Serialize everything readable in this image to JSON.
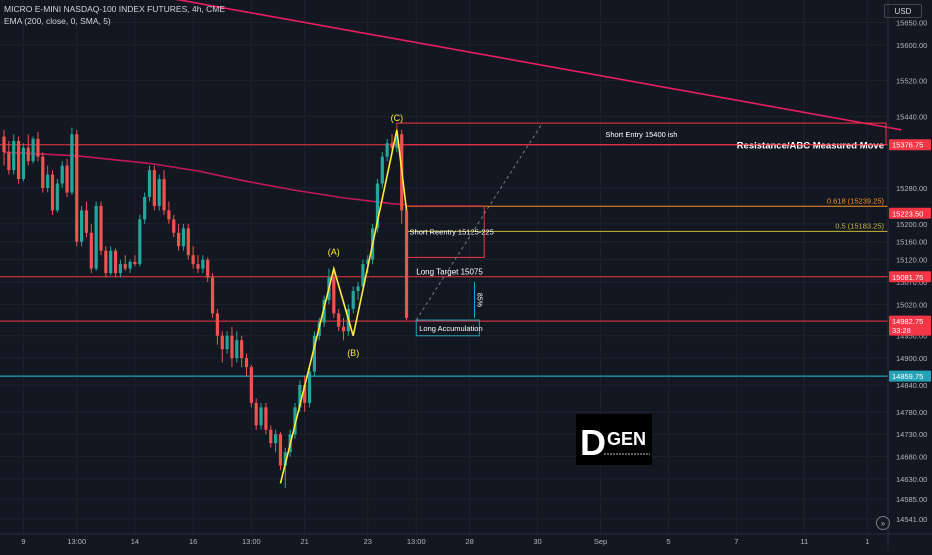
{
  "header": {
    "symbol_line": "MICRO E-MINI NASDAQ-100 INDEX FUTURES, 4h, CME",
    "indicator_line": "EMA (200, close, 0, SMA, 5)"
  },
  "currency": "USD",
  "goto_icon": "go-to-realtime-icon",
  "colors": {
    "background": "#131722",
    "up": "#26a69a",
    "down": "#ef5350",
    "ema": "#c2185b",
    "resistance": "#e91e63",
    "wave": "#ffeb3b",
    "fib_618": "#f7931e",
    "fib_05": "#c7b93a",
    "support_cyan": "#00bcd4"
  },
  "chart_data": {
    "type": "candlestick",
    "timeframe": "4h",
    "y_range": [
      14525,
      15700
    ],
    "y_ticks": [
      {
        "v": 15650,
        "t": "15650.00"
      },
      {
        "v": 15600,
        "t": "15600.00"
      },
      {
        "v": 15520,
        "t": "15520.00"
      },
      {
        "v": 15440,
        "t": "15440.00"
      },
      {
        "v": 15280,
        "t": "15280.00"
      },
      {
        "v": 15200,
        "t": "15200.00"
      },
      {
        "v": 15160,
        "t": "15160.00"
      },
      {
        "v": 15120,
        "t": "15120.00"
      },
      {
        "v": 15070,
        "t": "15070.00"
      },
      {
        "v": 15020,
        "t": "15020.00"
      },
      {
        "v": 14950,
        "t": "14950.00"
      },
      {
        "v": 14900,
        "t": "14900.00"
      },
      {
        "v": 14840,
        "t": "14840.00"
      },
      {
        "v": 14780,
        "t": "14780.00"
      },
      {
        "v": 14730,
        "t": "14730.00"
      },
      {
        "v": 14680,
        "t": "14680.00"
      },
      {
        "v": 14630,
        "t": "14630.00"
      },
      {
        "v": 14585,
        "t": "14585.00"
      },
      {
        "v": 14541,
        "t": "14541.00"
      }
    ],
    "x_ticks": [
      {
        "i": 4,
        "t": "9"
      },
      {
        "i": 15,
        "t": "13:00"
      },
      {
        "i": 27,
        "t": "14"
      },
      {
        "i": 39,
        "t": "16"
      },
      {
        "i": 51,
        "t": "13:00"
      },
      {
        "i": 62,
        "t": "21"
      },
      {
        "i": 75,
        "t": "23"
      },
      {
        "i": 85,
        "t": "13:00"
      },
      {
        "i": 96,
        "t": "28"
      },
      {
        "i": 110,
        "t": "30"
      },
      {
        "i": 123,
        "t": "Sep"
      },
      {
        "i": 137,
        "t": "5"
      },
      {
        "i": 151,
        "t": "7"
      },
      {
        "i": 165,
        "t": "11"
      },
      {
        "i": 178,
        "t": "1"
      }
    ],
    "candles": [
      [
        15395,
        15410,
        15330,
        15360
      ],
      [
        15360,
        15385,
        15310,
        15320
      ],
      [
        15320,
        15400,
        15310,
        15385
      ],
      [
        15385,
        15395,
        15290,
        15300
      ],
      [
        15300,
        15380,
        15295,
        15370
      ],
      [
        15370,
        15400,
        15330,
        15340
      ],
      [
        15340,
        15395,
        15335,
        15390
      ],
      [
        15390,
        15405,
        15340,
        15350
      ],
      [
        15350,
        15360,
        15270,
        15280
      ],
      [
        15280,
        15330,
        15270,
        15310
      ],
      [
        15310,
        15320,
        15220,
        15230
      ],
      [
        15230,
        15300,
        15225,
        15290
      ],
      [
        15290,
        15340,
        15280,
        15330
      ],
      [
        15330,
        15345,
        15260,
        15270
      ],
      [
        15270,
        15415,
        15265,
        15400
      ],
      [
        15400,
        15410,
        15150,
        15160
      ],
      [
        15160,
        15240,
        15150,
        15230
      ],
      [
        15230,
        15250,
        15170,
        15180
      ],
      [
        15180,
        15200,
        15090,
        15100
      ],
      [
        15100,
        15250,
        15095,
        15240
      ],
      [
        15240,
        15250,
        15130,
        15140
      ],
      [
        15140,
        15150,
        15080,
        15090
      ],
      [
        15090,
        15150,
        15085,
        15140
      ],
      [
        15140,
        15145,
        15080,
        15090
      ],
      [
        15090,
        15120,
        15080,
        15110
      ],
      [
        15110,
        15130,
        15095,
        15100
      ],
      [
        15100,
        15120,
        15090,
        15115
      ],
      [
        15115,
        15130,
        15105,
        15110
      ],
      [
        15110,
        15220,
        15105,
        15210
      ],
      [
        15210,
        15270,
        15200,
        15260
      ],
      [
        15260,
        15330,
        15250,
        15320
      ],
      [
        15320,
        15330,
        15230,
        15240
      ],
      [
        15240,
        15310,
        15230,
        15300
      ],
      [
        15300,
        15320,
        15220,
        15230
      ],
      [
        15230,
        15250,
        15200,
        15210
      ],
      [
        15210,
        15220,
        15170,
        15180
      ],
      [
        15180,
        15200,
        15140,
        15150
      ],
      [
        15150,
        15200,
        15140,
        15190
      ],
      [
        15190,
        15200,
        15120,
        15130
      ],
      [
        15130,
        15150,
        15100,
        15110
      ],
      [
        15110,
        15130,
        15090,
        15100
      ],
      [
        15100,
        15130,
        15090,
        15120
      ],
      [
        15120,
        15125,
        15070,
        15080
      ],
      [
        15080,
        15090,
        14990,
        15000
      ],
      [
        15000,
        15010,
        14930,
        14950
      ],
      [
        14950,
        14960,
        14890,
        14920
      ],
      [
        14920,
        14960,
        14910,
        14950
      ],
      [
        14950,
        14970,
        14880,
        14900
      ],
      [
        14900,
        14960,
        14890,
        14940
      ],
      [
        14940,
        14950,
        14880,
        14900
      ],
      [
        14900,
        14910,
        14860,
        14880
      ],
      [
        14880,
        14885,
        14790,
        14800
      ],
      [
        14800,
        14810,
        14740,
        14750
      ],
      [
        14750,
        14800,
        14740,
        14790
      ],
      [
        14790,
        14800,
        14730,
        14740
      ],
      [
        14740,
        14750,
        14700,
        14710
      ],
      [
        14710,
        14740,
        14690,
        14730
      ],
      [
        14730,
        14735,
        14650,
        14660
      ],
      [
        14660,
        14700,
        14610,
        14690
      ],
      [
        14690,
        14740,
        14680,
        14730
      ],
      [
        14730,
        14800,
        14720,
        14790
      ],
      [
        14790,
        14850,
        14780,
        14840
      ],
      [
        14840,
        14860,
        14780,
        14800
      ],
      [
        14800,
        14880,
        14790,
        14870
      ],
      [
        14870,
        14960,
        14860,
        14950
      ],
      [
        14950,
        14990,
        14940,
        14980
      ],
      [
        14980,
        15040,
        14970,
        15030
      ],
      [
        15030,
        15100,
        15020,
        15080
      ],
      [
        15080,
        15100,
        14990,
        15000
      ],
      [
        15000,
        15010,
        14960,
        14970
      ],
      [
        14970,
        14990,
        14940,
        14960
      ],
      [
        14960,
        15020,
        14950,
        15010
      ],
      [
        15010,
        15060,
        15000,
        15050
      ],
      [
        15050,
        15070,
        15030,
        15060
      ],
      [
        15060,
        15120,
        15050,
        15110
      ],
      [
        15110,
        15130,
        15090,
        15120
      ],
      [
        15120,
        15200,
        15110,
        15190
      ],
      [
        15190,
        15300,
        15180,
        15290
      ],
      [
        15290,
        15360,
        15280,
        15350
      ],
      [
        15350,
        15390,
        15340,
        15380
      ],
      [
        15380,
        15400,
        15360,
        15370
      ],
      [
        15370,
        15410,
        15360,
        15400
      ],
      [
        15400,
        15410,
        15200,
        15230
      ],
      [
        15230,
        15240,
        14985,
        14990
      ]
    ],
    "ema": [
      [
        0,
        15360
      ],
      [
        15,
        15352
      ],
      [
        30,
        15335
      ],
      [
        40,
        15318
      ],
      [
        50,
        15295
      ],
      [
        60,
        15275
      ],
      [
        70,
        15258
      ],
      [
        80,
        15245
      ],
      [
        83,
        15243
      ]
    ],
    "resistance_trendline": [
      [
        26,
        15720
      ],
      [
        185,
        15410
      ]
    ],
    "wave_path": [
      [
        57,
        14620
      ],
      [
        68,
        15100
      ],
      [
        72,
        14950
      ],
      [
        81,
        15410
      ],
      [
        83,
        15230
      ]
    ],
    "wave_labels": [
      {
        "i": 68,
        "price": 15130,
        "text": "(A)"
      },
      {
        "i": 72,
        "price": 14905,
        "text": "(B)"
      },
      {
        "i": 81,
        "price": 15430,
        "text": "(C)"
      }
    ],
    "horizontal_levels": [
      {
        "price": 15376.75,
        "tag": "15376.75",
        "label": "Resistance/ABC Measured Move",
        "color": "#f23645",
        "bg": "#f23645"
      },
      {
        "price": 15239.25,
        "label": "0.618 (15239.25)",
        "color": "#f7931e"
      },
      {
        "price": 15183.25,
        "label": "0.5 (15183.25)",
        "color": "#c7b93a"
      },
      {
        "price": 15223.5,
        "tag": "15223.50",
        "color": "#f23645",
        "bg": "#f23645",
        "line": false
      },
      {
        "price": 15081.75,
        "tag": "15081.75",
        "color": "#f23645",
        "bg": "#f23645"
      },
      {
        "price": 14982.75,
        "tag": "14982.75",
        "sub": "33:28",
        "color": "#f23645",
        "bg": "#f23645"
      },
      {
        "price": 14859.75,
        "tag": "14859.75",
        "color": "#26c6da",
        "bg": "#26a2b5"
      }
    ],
    "zones": [
      {
        "x1": 81,
        "x2": 185,
        "p1": 15425,
        "p2": 15376.75,
        "label": "Short Entry 15400 ish",
        "color": "#f23645"
      },
      {
        "x1": 83,
        "x2": 99,
        "p1": 15240,
        "p2": 15125,
        "label": "Short Reentry 15125-225",
        "color": "#f23645"
      },
      {
        "x1": 85,
        "x2": 98,
        "p1": 14985,
        "p2": 14950,
        "label": "Long Accumulation",
        "color": "#26a2b5"
      }
    ],
    "level_labels": [
      {
        "i": 85,
        "price": 15082,
        "text": "Long Target  15075"
      }
    ],
    "projection": [
      [
        85,
        14985
      ],
      [
        111,
        15425
      ]
    ],
    "measure": {
      "i": 97,
      "p1": 15070,
      "p2": 14990,
      "label": "85%"
    },
    "watermark": {
      "text": "GEN",
      "letter": "D"
    }
  }
}
